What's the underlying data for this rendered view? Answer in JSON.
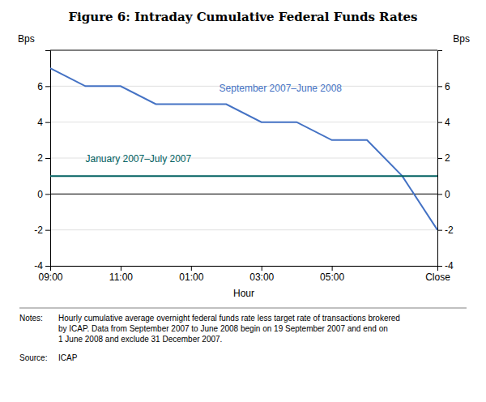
{
  "chart_data": {
    "type": "line",
    "title": "Figure 6: Intraday Cumulative Federal Funds Rates",
    "xlabel": "Hour",
    "ylabel": "Bps",
    "y2label": "Bps",
    "x": [
      0,
      1,
      2,
      3,
      4,
      5,
      6,
      7,
      8,
      9,
      10,
      11
    ],
    "series": [
      {
        "color": "#4472C4",
        "values": [
          7.0,
          6.0,
          6.0,
          5.0,
          5.0,
          5.0,
          4.0,
          4.0,
          3.0,
          3.0,
          1.0,
          -2.0
        ]
      },
      {
        "color": "#006060",
        "values": [
          1.0,
          1.0,
          1.0,
          1.0,
          1.0,
          1.0,
          1.0,
          1.0,
          1.0,
          1.0,
          1.0,
          1.0
        ]
      }
    ],
    "annotations": [
      {
        "text": "September 2007–June 2008",
        "x": 4.8,
        "y": 5.55,
        "color": "#4472C4"
      },
      {
        "text": "January 2007–July 2007",
        "x": 1.0,
        "y": 1.65,
        "color": "#006060"
      }
    ],
    "xlim": [
      0,
      11
    ],
    "xticks": [
      {
        "value": 0,
        "label": "09:00"
      },
      {
        "value": 2,
        "label": "11:00"
      },
      {
        "value": 4,
        "label": "01:00"
      },
      {
        "value": 6,
        "label": "03:00"
      },
      {
        "value": 8,
        "label": "05:00"
      },
      {
        "value": 11,
        "label": "Close"
      }
    ],
    "ylim": [
      -4,
      8
    ],
    "yticks": [
      -4,
      -2,
      0,
      2,
      4,
      6
    ],
    "y2lim": [
      -4,
      8
    ],
    "y2ticks": [
      -4,
      -2,
      0,
      2,
      4,
      6
    ],
    "grid": true,
    "notes_label": "Notes:",
    "notes": "Hourly cumulative average overnight federal funds rate less target rate of transactions brokered\nby ICAP. Data from September 2007 to June 2008 begin on 19 September 2007 and end on\n1 June 2008 and exclude 31 December 2007.",
    "source_label": "Source:",
    "source": "ICAP"
  }
}
